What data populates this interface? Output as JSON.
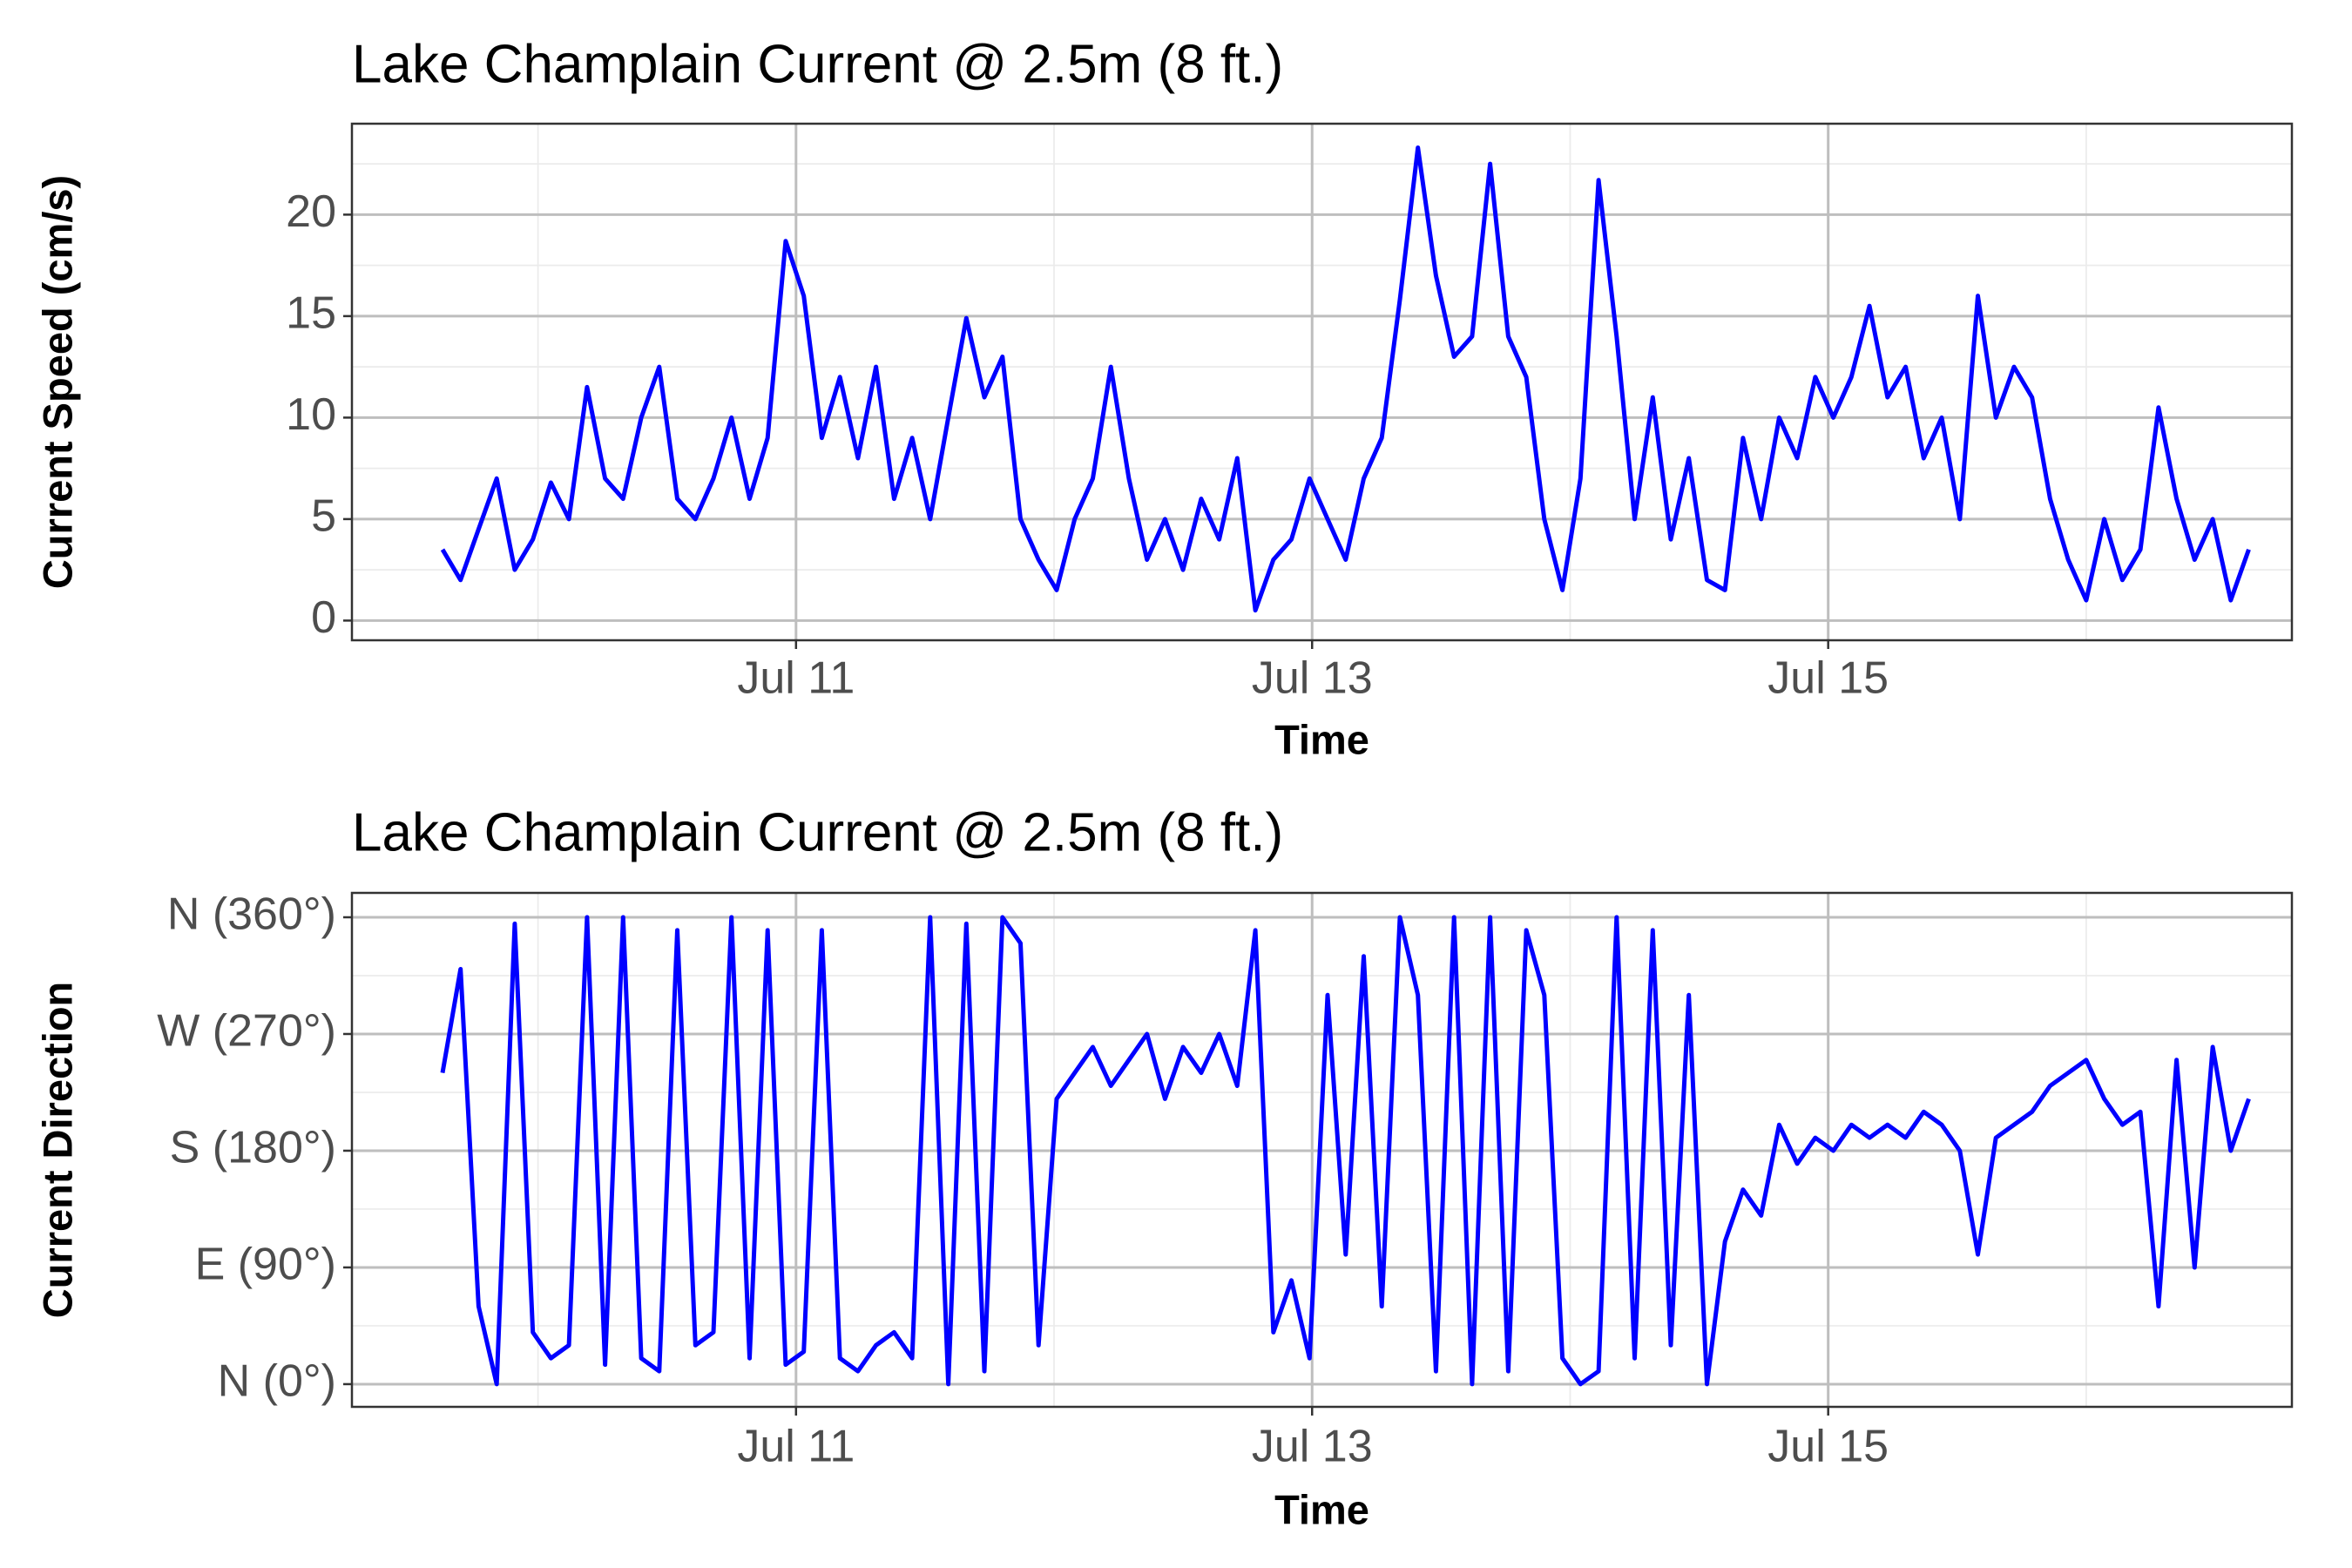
{
  "chart_data": [
    {
      "type": "line",
      "title": "Lake Champlain Current @ 2.5m (8 ft.)",
      "xlabel": "Time",
      "ylabel": "Current Speed (cm/s)",
      "x": [
        9.63,
        9.7,
        9.77,
        9.84,
        9.91,
        9.98,
        10.05,
        10.12,
        10.19,
        10.26,
        10.33,
        10.4,
        10.47,
        10.54,
        10.61,
        10.68,
        10.75,
        10.82,
        10.89,
        10.96,
        11.03,
        11.1,
        11.17,
        11.24,
        11.31,
        11.38,
        11.45,
        11.52,
        11.59,
        11.66,
        11.73,
        11.8,
        11.87,
        11.94,
        12.01,
        12.08,
        12.15,
        12.22,
        12.29,
        12.36,
        12.43,
        12.5,
        12.57,
        12.64,
        12.71,
        12.78,
        12.85,
        12.92,
        12.99,
        13.06,
        13.13,
        13.2,
        13.27,
        13.34,
        13.41,
        13.48,
        13.55,
        13.62,
        13.69,
        13.76,
        13.83,
        13.9,
        13.97,
        14.04,
        14.11,
        14.18,
        14.25,
        14.32,
        14.39,
        14.46,
        14.53,
        14.6,
        14.67,
        14.74,
        14.81,
        14.88,
        14.95,
        15.02,
        15.09,
        15.16,
        15.23,
        15.3,
        15.37,
        15.44,
        15.51,
        15.58,
        15.65,
        15.72,
        15.79,
        15.86,
        15.93,
        16.0,
        16.07,
        16.14,
        16.21,
        16.28,
        16.35,
        16.42,
        16.49,
        16.56,
        16.63
      ],
      "values": [
        3.5,
        2,
        4.5,
        7,
        2.5,
        4,
        6.8,
        5,
        11.5,
        7,
        6,
        10,
        12.5,
        6,
        5,
        7,
        10,
        6,
        9,
        18.7,
        16,
        9,
        12,
        8,
        12.5,
        6,
        9,
        5,
        10,
        14.9,
        11,
        13,
        5,
        3,
        1.5,
        5,
        7,
        12.5,
        7,
        3,
        5,
        2.5,
        6,
        4,
        8,
        0.5,
        3,
        4,
        7,
        5,
        3,
        7,
        9,
        15.8,
        23.3,
        17,
        13,
        14,
        22.5,
        14,
        12,
        5,
        1.5,
        7,
        21.7,
        14,
        5,
        11,
        4,
        8,
        2,
        1.5,
        9,
        5,
        10,
        8,
        12,
        10,
        12,
        15.5,
        11,
        12.5,
        8,
        10,
        5,
        16,
        10,
        12.5,
        11,
        6,
        3,
        1,
        5,
        2,
        3.5,
        10.5,
        6,
        3,
        5,
        1,
        3.5
      ],
      "color": "#0000ff",
      "xlim": [
        9.279,
        16.797
      ],
      "xticks": [
        {
          "value": 11,
          "label": "Jul 11"
        },
        {
          "value": 13,
          "label": "Jul 13"
        },
        {
          "value": 15,
          "label": "Jul 15"
        }
      ],
      "xminor": [
        10,
        12,
        14,
        16
      ],
      "ylim": [
        -0.97,
        24.48
      ],
      "yticks": [
        0,
        5,
        10,
        15,
        20
      ],
      "yminor": [
        2.5,
        7.5,
        12.5,
        17.5,
        22.5
      ],
      "grid": true
    },
    {
      "type": "line",
      "title": "Lake Champlain Current @ 2.5m (8 ft.)",
      "xlabel": "Time",
      "ylabel": "Current Direction",
      "x": [
        9.63,
        9.7,
        9.77,
        9.84,
        9.91,
        9.98,
        10.05,
        10.12,
        10.19,
        10.26,
        10.33,
        10.4,
        10.47,
        10.54,
        10.61,
        10.68,
        10.75,
        10.82,
        10.89,
        10.96,
        11.03,
        11.1,
        11.17,
        11.24,
        11.31,
        11.38,
        11.45,
        11.52,
        11.59,
        11.66,
        11.73,
        11.8,
        11.87,
        11.94,
        12.01,
        12.08,
        12.15,
        12.22,
        12.29,
        12.36,
        12.43,
        12.5,
        12.57,
        12.64,
        12.71,
        12.78,
        12.85,
        12.92,
        12.99,
        13.06,
        13.13,
        13.2,
        13.27,
        13.34,
        13.41,
        13.48,
        13.55,
        13.62,
        13.69,
        13.76,
        13.83,
        13.9,
        13.97,
        14.04,
        14.11,
        14.18,
        14.25,
        14.32,
        14.39,
        14.46,
        14.53,
        14.6,
        14.67,
        14.74,
        14.81,
        14.88,
        14.95,
        15.02,
        15.09,
        15.16,
        15.23,
        15.3,
        15.37,
        15.44,
        15.51,
        15.58,
        15.65,
        15.72,
        15.79,
        15.86,
        15.93,
        16.0,
        16.07,
        16.14,
        16.21,
        16.28,
        16.35,
        16.42,
        16.49,
        16.56,
        16.63
      ],
      "values": [
        240,
        320,
        60,
        0,
        355,
        40,
        20,
        30,
        360,
        15,
        360,
        20,
        10,
        350,
        30,
        40,
        360,
        20,
        350,
        15,
        25,
        350,
        20,
        10,
        30,
        40,
        20,
        360,
        0,
        355,
        10,
        360,
        340,
        30,
        220,
        240,
        260,
        230,
        250,
        270,
        220,
        260,
        240,
        270,
        230,
        350,
        40,
        80,
        20,
        300,
        100,
        330,
        60,
        360,
        300,
        10,
        360,
        0,
        360,
        10,
        350,
        300,
        20,
        0,
        10,
        360,
        20,
        350,
        30,
        300,
        0,
        110,
        150,
        130,
        200,
        170,
        190,
        180,
        200,
        190,
        200,
        190,
        210,
        200,
        180,
        100,
        190,
        200,
        210,
        230,
        240,
        250,
        220,
        200,
        210,
        60,
        250,
        90,
        260,
        180,
        220
      ],
      "color": "#0000ff",
      "xlim": [
        9.279,
        16.797
      ],
      "xticks": [
        {
          "value": 11,
          "label": "Jul 11"
        },
        {
          "value": 13,
          "label": "Jul 13"
        },
        {
          "value": 15,
          "label": "Jul 15"
        }
      ],
      "xminor": [
        10,
        12,
        14,
        16
      ],
      "ylim": [
        -17.5,
        378.8
      ],
      "yticks": [
        {
          "value": 0,
          "label": "N (0°)"
        },
        {
          "value": 90,
          "label": "E (90°)"
        },
        {
          "value": 180,
          "label": "S (180°)"
        },
        {
          "value": 270,
          "label": "W (270°)"
        },
        {
          "value": 360,
          "label": "N (360°)"
        }
      ],
      "yminor": [
        45,
        135,
        225,
        315
      ],
      "grid": true
    }
  ]
}
